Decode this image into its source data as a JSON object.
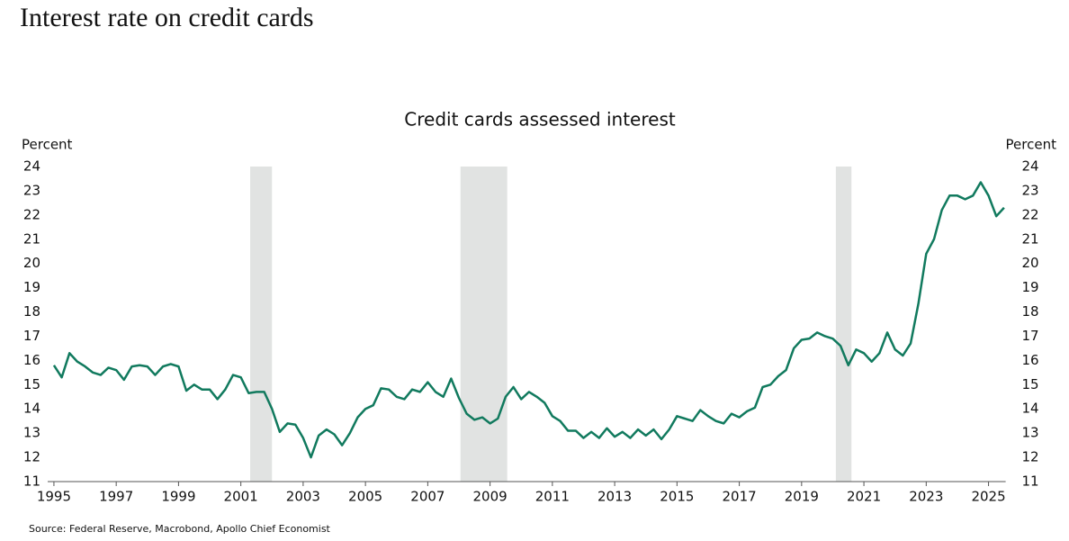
{
  "page_title": "Interest rate on credit cards",
  "source": "Source: Federal Reserve, Macrobond, Apollo Chief Economist",
  "chart_data": {
    "type": "line",
    "title": "Credit cards assessed interest",
    "y_label": "Percent",
    "y2_label": "Percent",
    "color": "#117a5e",
    "shade_color": "#e1e3e2",
    "shaded_periods": [
      [
        2001.3,
        2002.0
      ],
      [
        2008.05,
        2009.55
      ],
      [
        2020.1,
        2020.6
      ]
    ],
    "xlim": [
      1994.8,
      2025.55
    ],
    "xticks": [
      1995,
      1997,
      1999,
      2001,
      2003,
      2005,
      2007,
      2009,
      2011,
      2013,
      2015,
      2017,
      2019,
      2021,
      2023,
      2025
    ],
    "ylim": [
      11,
      24
    ],
    "yticks": [
      11,
      12,
      13,
      14,
      15,
      16,
      17,
      18,
      19,
      20,
      21,
      22,
      23,
      24
    ],
    "y2lim": [
      11,
      24
    ],
    "y2ticks": [
      11,
      12,
      13,
      14,
      15,
      16,
      17,
      18,
      19,
      20,
      21,
      22,
      23,
      24
    ],
    "x": [
      1995,
      1995.25,
      1995.5,
      1995.75,
      1996,
      1996.25,
      1996.5,
      1996.75,
      1997,
      1997.25,
      1997.5,
      1997.75,
      1998,
      1998.25,
      1998.5,
      1998.75,
      1999,
      1999.25,
      1999.5,
      1999.75,
      2000,
      2000.25,
      2000.5,
      2000.75,
      2001,
      2001.25,
      2001.5,
      2001.75,
      2002,
      2002.25,
      2002.5,
      2002.75,
      2003,
      2003.25,
      2003.5,
      2003.75,
      2004,
      2004.25,
      2004.5,
      2004.75,
      2005,
      2005.25,
      2005.5,
      2005.75,
      2006,
      2006.25,
      2006.5,
      2006.75,
      2007,
      2007.25,
      2007.5,
      2007.75,
      2008,
      2008.25,
      2008.5,
      2008.75,
      2009,
      2009.25,
      2009.5,
      2009.75,
      2010,
      2010.25,
      2010.5,
      2010.75,
      2011,
      2011.25,
      2011.5,
      2011.75,
      2012,
      2012.25,
      2012.5,
      2012.75,
      2013,
      2013.25,
      2013.5,
      2013.75,
      2014,
      2014.25,
      2014.5,
      2014.75,
      2015,
      2015.25,
      2015.5,
      2015.75,
      2016,
      2016.25,
      2016.5,
      2016.75,
      2017,
      2017.25,
      2017.5,
      2017.75,
      2018,
      2018.25,
      2018.5,
      2018.75,
      2019,
      2019.25,
      2019.5,
      2019.75,
      2020,
      2020.25,
      2020.5,
      2020.75,
      2021,
      2021.25,
      2021.5,
      2021.75,
      2022,
      2022.25,
      2022.5,
      2022.75,
      2023,
      2023.25,
      2023.5,
      2023.75,
      2024,
      2024.25,
      2024.5,
      2024.75,
      2025,
      2025.25,
      2025.5
    ],
    "values": [
      15.8,
      15.3,
      16.3,
      15.95,
      15.75,
      15.5,
      15.4,
      15.7,
      15.6,
      15.2,
      15.75,
      15.8,
      15.75,
      15.4,
      15.75,
      15.85,
      15.75,
      14.75,
      15.0,
      14.8,
      14.8,
      14.4,
      14.8,
      15.4,
      15.3,
      14.65,
      14.7,
      14.7,
      14.0,
      13.05,
      13.4,
      13.35,
      12.8,
      12.0,
      12.9,
      13.15,
      12.95,
      12.5,
      13.0,
      13.65,
      14.0,
      14.15,
      14.85,
      14.8,
      14.5,
      14.4,
      14.8,
      14.7,
      15.1,
      14.7,
      14.5,
      15.25,
      14.45,
      13.8,
      13.55,
      13.65,
      13.4,
      13.6,
      14.5,
      14.9,
      14.4,
      14.7,
      14.5,
      14.25,
      13.7,
      13.5,
      13.1,
      13.1,
      12.8,
      13.05,
      12.8,
      13.2,
      12.85,
      13.05,
      12.8,
      13.15,
      12.9,
      13.15,
      12.75,
      13.15,
      13.7,
      13.6,
      13.5,
      13.95,
      13.7,
      13.5,
      13.4,
      13.8,
      13.65,
      13.9,
      14.05,
      14.9,
      15.0,
      15.35,
      15.6,
      16.5,
      16.85,
      16.9,
      17.15,
      17.0,
      16.9,
      16.6,
      15.8,
      16.45,
      16.3,
      15.95,
      16.3,
      17.15,
      16.45,
      16.2,
      16.7,
      18.35,
      20.4,
      21.0,
      22.2,
      22.8,
      22.8,
      22.65,
      22.8,
      23.35,
      22.8,
      21.95,
      22.3
    ]
  }
}
